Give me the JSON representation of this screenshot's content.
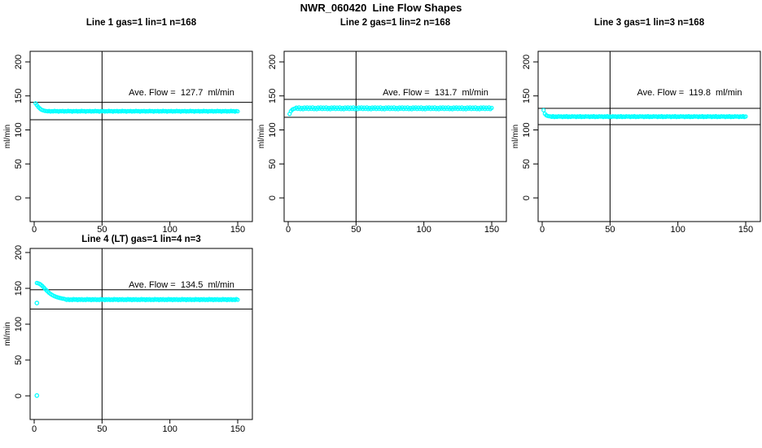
{
  "page_title": "NWR_060420  Line Flow Shapes",
  "colors": {
    "points": "#00FFFF",
    "axis": "#000000",
    "background": "#FFFFFF",
    "text": "#000000"
  },
  "chart_data": [
    {
      "type": "scatter",
      "title": "Line 1 gas=1 lin=1 n=168",
      "annotation": "Ave. Flow =  127.7  ml/min",
      "ave_flow": 127.7,
      "xlabel": "",
      "ylabel": "ml/min",
      "xticks": [
        0,
        50,
        100,
        150
      ],
      "yticks": [
        0,
        50,
        100,
        150,
        200
      ],
      "xlim": [
        -3,
        161
      ],
      "ylim": [
        -35,
        216
      ],
      "vline_x": 50,
      "hlines": [
        140.5,
        114.9
      ],
      "legend": null,
      "grid": false,
      "x_start": 1,
      "x_step": 1,
      "y": [
        139.0,
        136.5,
        133.8,
        131.8,
        130.2,
        129.2,
        128.5,
        128.0,
        127.8,
        127.3,
        127.9,
        127.1,
        127.6,
        127.2,
        128.0,
        127.4,
        127.7,
        127.0,
        127.8,
        127.3,
        127.9,
        127.1,
        127.6,
        127.2,
        128.0,
        127.4,
        127.7,
        127.0,
        127.8,
        127.3,
        127.9,
        127.1,
        127.6,
        127.2,
        128.0,
        127.4,
        127.7,
        127.0,
        127.8,
        127.3,
        127.9,
        127.1,
        127.6,
        127.2,
        128.0,
        127.4,
        127.7,
        127.0,
        127.8,
        127.3,
        127.9,
        127.1,
        127.6,
        127.2,
        128.0,
        127.4,
        127.7,
        127.0,
        127.8,
        127.3,
        127.9,
        127.1,
        127.6,
        127.2,
        128.0,
        127.4,
        127.7,
        127.0,
        127.8,
        127.3,
        127.9,
        127.1,
        127.6,
        127.2,
        128.0,
        127.4,
        127.7,
        127.0,
        127.8,
        127.3,
        127.9,
        127.1,
        127.6,
        127.2,
        128.0,
        127.4,
        127.7,
        127.0,
        127.8,
        127.3,
        127.9,
        127.1,
        127.6,
        127.2,
        128.0,
        127.4,
        127.7,
        127.0,
        127.8,
        127.3,
        127.9,
        127.1,
        127.6,
        127.2,
        128.0,
        127.4,
        127.7,
        127.0,
        127.8,
        127.3,
        127.9,
        127.1,
        127.6,
        127.2,
        128.0,
        127.4,
        127.7,
        127.0,
        127.8,
        127.3,
        127.9,
        127.1,
        127.6,
        127.2,
        128.0,
        127.4,
        127.7,
        127.0,
        127.8,
        127.3,
        127.9,
        127.1,
        127.6,
        127.2,
        128.0,
        127.4,
        127.7,
        127.0,
        127.8,
        127.3,
        127.9,
        127.1,
        127.6,
        127.2,
        128.0,
        127.4,
        127.7,
        127.0,
        127.8,
        127.3
      ],
      "extra_points": []
    },
    {
      "type": "scatter",
      "title": "Line 2 gas=1 lin=2 n=168",
      "annotation": "Ave. Flow =  131.7  ml/min",
      "ave_flow": 131.7,
      "xlabel": "",
      "ylabel": "ml/min",
      "xticks": [
        0,
        50,
        100,
        150
      ],
      "yticks": [
        0,
        50,
        100,
        150,
        200
      ],
      "xlim": [
        -3,
        161
      ],
      "ylim": [
        -35,
        216
      ],
      "vline_x": 50,
      "hlines": [
        144.9,
        118.5
      ],
      "legend": null,
      "grid": false,
      "x_start": 1,
      "x_step": 1,
      "y": [
        123.5,
        127.5,
        129.8,
        130.9,
        131.4,
        132.8,
        130.9,
        133.0,
        130.7,
        132.3,
        130.5,
        132.9,
        131.3,
        133.1,
        130.8,
        132.8,
        130.9,
        133.0,
        130.7,
        132.3,
        130.5,
        132.9,
        131.3,
        133.1,
        130.8,
        132.8,
        130.9,
        133.0,
        130.7,
        132.3,
        130.5,
        132.9,
        131.3,
        133.1,
        130.8,
        132.8,
        130.9,
        133.0,
        130.7,
        132.3,
        130.5,
        132.9,
        131.3,
        133.1,
        130.8,
        132.8,
        130.9,
        133.0,
        130.7,
        132.3,
        130.5,
        132.9,
        131.3,
        133.1,
        130.8,
        132.8,
        130.9,
        133.0,
        130.7,
        132.3,
        130.5,
        132.9,
        131.3,
        133.1,
        130.8,
        132.8,
        130.9,
        133.0,
        130.7,
        132.3,
        130.5,
        132.9,
        131.3,
        133.1,
        130.8,
        132.8,
        130.9,
        133.0,
        130.7,
        132.3,
        130.5,
        132.9,
        131.3,
        133.1,
        130.8,
        132.8,
        130.9,
        133.0,
        130.7,
        132.3,
        130.5,
        132.9,
        131.3,
        133.1,
        130.8,
        132.8,
        130.9,
        133.0,
        130.7,
        132.3,
        130.5,
        132.9,
        131.3,
        133.1,
        130.8,
        132.8,
        130.9,
        133.0,
        130.7,
        132.3,
        130.5,
        132.9,
        131.3,
        133.1,
        130.8,
        132.8,
        130.9,
        133.0,
        130.7,
        132.3,
        130.5,
        132.9,
        131.3,
        133.1,
        130.8,
        132.8,
        130.9,
        133.0,
        130.7,
        132.3,
        130.5,
        132.9,
        131.3,
        133.1,
        130.8,
        132.8,
        130.9,
        133.0,
        130.7,
        132.3,
        130.5,
        132.9,
        131.3,
        133.1,
        130.8,
        132.8,
        130.9,
        133.0,
        130.7,
        132.3
      ],
      "extra_points": []
    },
    {
      "type": "scatter",
      "title": "Line 3 gas=1 lin=3 n=168",
      "annotation": "Ave. Flow =  119.8  ml/min",
      "ave_flow": 119.8,
      "xlabel": "",
      "ylabel": "ml/min",
      "xticks": [
        0,
        50,
        100,
        150
      ],
      "yticks": [
        0,
        50,
        100,
        150,
        200
      ],
      "xlim": [
        -3,
        161
      ],
      "ylim": [
        -35,
        216
      ],
      "vline_x": 50,
      "hlines": [
        131.8,
        107.8
      ],
      "legend": null,
      "grid": false,
      "x_start": 1,
      "x_step": 1,
      "y": [
        129.0,
        123.8,
        121.5,
        120.6,
        120.1,
        120.0,
        119.3,
        120.2,
        119.1,
        119.8,
        119.2,
        120.1,
        119.5,
        119.9,
        119.0,
        120.0,
        119.3,
        120.2,
        119.1,
        119.8,
        119.2,
        120.1,
        119.5,
        119.9,
        119.0,
        120.0,
        119.3,
        120.2,
        119.1,
        119.8,
        119.2,
        120.1,
        119.5,
        119.9,
        119.0,
        120.0,
        119.3,
        120.2,
        119.1,
        119.8,
        119.2,
        120.1,
        119.5,
        119.9,
        119.0,
        120.0,
        119.3,
        120.2,
        119.1,
        119.8,
        119.2,
        120.1,
        119.5,
        119.9,
        119.0,
        120.0,
        119.3,
        120.2,
        119.1,
        119.8,
        119.2,
        120.1,
        119.5,
        119.9,
        119.0,
        120.0,
        119.3,
        120.2,
        119.1,
        119.8,
        119.2,
        120.1,
        119.5,
        119.9,
        119.0,
        120.0,
        119.3,
        120.2,
        119.1,
        119.8,
        119.2,
        120.1,
        119.5,
        119.9,
        119.0,
        120.0,
        119.3,
        120.2,
        119.1,
        119.8,
        119.2,
        120.1,
        119.5,
        119.9,
        119.0,
        120.0,
        119.3,
        120.2,
        119.1,
        119.8,
        119.2,
        120.1,
        119.5,
        119.9,
        119.0,
        120.0,
        119.3,
        120.2,
        119.1,
        119.8,
        119.2,
        120.1,
        119.5,
        119.9,
        119.0,
        120.0,
        119.3,
        120.2,
        119.1,
        119.8,
        119.2,
        120.1,
        119.5,
        119.9,
        119.0,
        120.0,
        119.3,
        120.2,
        119.1,
        119.8,
        119.2,
        120.1,
        119.5,
        119.9,
        119.0,
        120.0,
        119.3,
        120.2,
        119.1,
        119.8,
        119.2,
        120.1,
        119.5,
        119.9,
        119.0,
        120.0,
        119.3,
        120.2,
        119.1,
        119.8
      ],
      "extra_points": []
    },
    {
      "type": "scatter",
      "title": "Line 4 (LT) gas=1 lin=4 n=3",
      "annotation": "Ave. Flow =  134.5  ml/min",
      "ave_flow": 134.5,
      "xlabel": "",
      "ylabel": "ml/min",
      "xticks": [
        0,
        50,
        100,
        150
      ],
      "yticks": [
        0,
        50,
        100,
        150,
        200
      ],
      "xlim": [
        -3,
        161
      ],
      "ylim": [
        -35,
        216
      ],
      "vline_x": 50,
      "hlines": [
        148.0,
        121.1
      ],
      "legend": null,
      "grid": false,
      "x_start": 1,
      "x_step": 1,
      "y": [
        null,
        157.5,
        157.0,
        156.2,
        155.0,
        153.3,
        151.3,
        149.3,
        147.3,
        145.5,
        143.8,
        142.3,
        141.0,
        140.0,
        139.1,
        138.3,
        137.6,
        137.0,
        136.5,
        136.1,
        135.7,
        135.4,
        134.8,
        133.9,
        135.0,
        133.7,
        134.5,
        133.8,
        135.1,
        134.1,
        134.9,
        133.6,
        134.8,
        133.9,
        135.0,
        133.7,
        134.5,
        133.8,
        135.1,
        134.1,
        134.9,
        133.6,
        134.8,
        133.9,
        135.0,
        133.7,
        134.5,
        133.8,
        135.1,
        134.1,
        134.9,
        133.6,
        134.8,
        133.9,
        135.0,
        133.7,
        134.5,
        133.8,
        135.1,
        134.1,
        134.9,
        133.6,
        134.8,
        133.9,
        135.0,
        133.7,
        134.5,
        133.8,
        135.1,
        134.1,
        134.9,
        133.6,
        134.8,
        133.9,
        135.0,
        133.7,
        134.5,
        133.8,
        135.1,
        134.1,
        134.9,
        133.6,
        134.8,
        133.9,
        135.0,
        133.7,
        134.5,
        133.8,
        135.1,
        134.1,
        134.9,
        133.6,
        134.8,
        133.9,
        135.0,
        133.7,
        134.5,
        133.8,
        135.1,
        134.1,
        134.9,
        133.6,
        134.8,
        133.9,
        135.0,
        133.7,
        134.5,
        133.8,
        135.1,
        134.1,
        134.9,
        133.6,
        134.8,
        133.9,
        135.0,
        133.7,
        134.5,
        133.8,
        135.1,
        134.1,
        134.9,
        133.6,
        134.8,
        133.9,
        135.0,
        133.7,
        134.5,
        133.8,
        135.1,
        134.1,
        134.9,
        133.6,
        134.8,
        133.9,
        135.0,
        133.7,
        134.5,
        133.8,
        135.1,
        134.1,
        134.9,
        133.6,
        134.8,
        133.9,
        135.0,
        133.7,
        134.5,
        133.8,
        135.1,
        134.1
      ],
      "extra_points": [
        [
          2,
          0.5
        ],
        [
          2,
          129.5
        ]
      ]
    }
  ]
}
